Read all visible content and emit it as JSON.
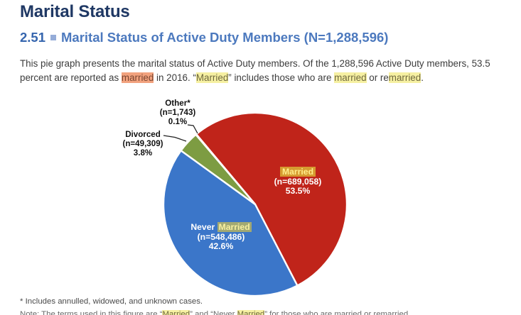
{
  "page": {
    "title": "Marital Status",
    "section_number": "2.51",
    "section_title": "Marital Status of Active Duty Members (N=1,288,596)"
  },
  "paragraph": {
    "segments": [
      {
        "t": "This pie graph presents the marital status of Active Duty members. Of the 1,288,596 Active Duty members, 53.5 percent are reported as ",
        "h": null
      },
      {
        "t": "married",
        "h": "o"
      },
      {
        "t": " in 2016. “",
        "h": null
      },
      {
        "t": "Married",
        "h": "y"
      },
      {
        "t": "” includes those who are ",
        "h": null
      },
      {
        "t": "married",
        "h": "y"
      },
      {
        "t": " or re",
        "h": null
      },
      {
        "t": "married",
        "h": "y"
      },
      {
        "t": ".",
        "h": null
      }
    ]
  },
  "chart_data": {
    "type": "pie",
    "title": "Marital Status of Active Duty Members",
    "total_n": 1288596,
    "start_angle_deg": -40,
    "direction": "clockwise",
    "separator_color": "#FFFFFF",
    "slices": [
      {
        "label": "Married",
        "n": 689058,
        "pct": 53.5,
        "color": "#C0241A"
      },
      {
        "label": "Never Married",
        "n": 548486,
        "pct": 42.6,
        "color": "#3B76C9"
      },
      {
        "label": "Divorced",
        "n": 49309,
        "pct": 3.8,
        "color": "#7D9C42"
      },
      {
        "label": "Other*",
        "n": 1743,
        "pct": 0.1,
        "color": "#FFFFFF"
      }
    ]
  },
  "pie_labels": {
    "married": {
      "name": "Married",
      "n": "(n=689,058)",
      "pct": "53.5%"
    },
    "never_married": {
      "name_prefix": "Never ",
      "name_highlight": "Married",
      "n": "(n=548,486)",
      "pct": "42.6%"
    },
    "divorced": {
      "name": "Divorced",
      "n": "(n=49,309)",
      "pct": "3.8%"
    },
    "other": {
      "name": "Other*",
      "n": "(n=1,743)",
      "pct": "0.1%"
    }
  },
  "footnote": "* Includes annulled, widowed, and unknown cases.",
  "note_partial": {
    "segments": [
      {
        "t": "Note: The terms used in this figure are “",
        "h": null
      },
      {
        "t": "Married",
        "h": "y"
      },
      {
        "t": "” and “Never ",
        "h": null
      },
      {
        "t": "Married",
        "h": "y"
      },
      {
        "t": "” for those who are married or remarried.",
        "h": null
      }
    ]
  },
  "colors": {
    "title": "#1F3864",
    "section_number": "#3565AE",
    "section_square": "#95ACD8",
    "section_title": "#4C79BE",
    "body_text": "#3C3C3C",
    "highlight_yellow_bg": "#F6F0A2",
    "highlight_orange_bg": "#F2A27E",
    "pie_red": "#C0241A",
    "pie_blue": "#3B76C9",
    "pie_green": "#7D9C42",
    "label_highlight_on_red_bg": "#D69B30",
    "label_highlight_on_blue_bg": "#A2A973"
  }
}
